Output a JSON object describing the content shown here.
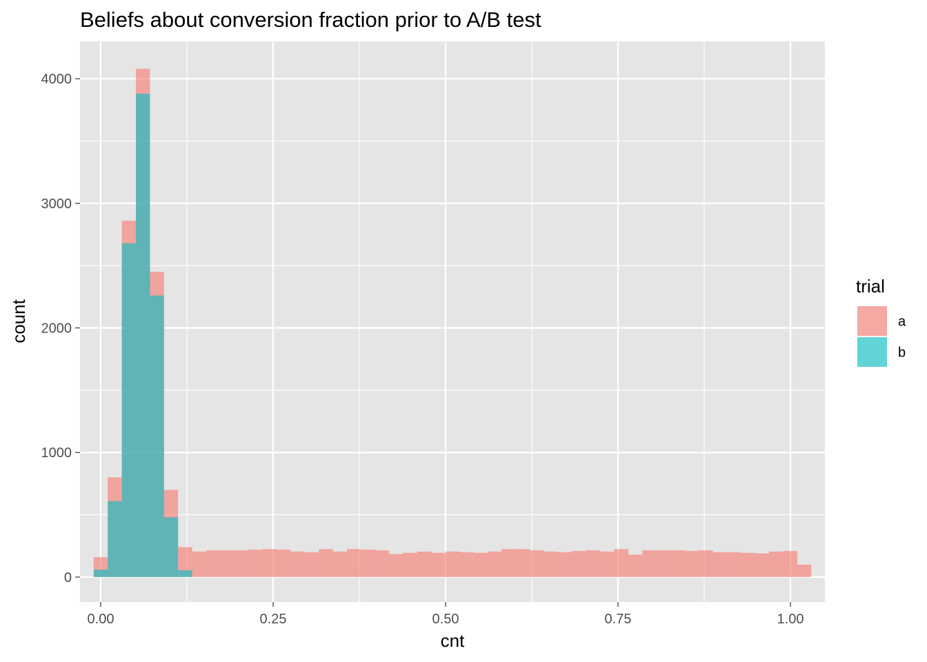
{
  "chart_data": {
    "type": "bar",
    "subtype": "histogram",
    "title": "Beliefs about conversion fraction prior to A/B test",
    "xlabel": "cnt",
    "ylabel": "count",
    "xlim": [
      -0.03,
      1.05
    ],
    "ylim": [
      -200,
      4300
    ],
    "x_ticks": [
      {
        "value": 0.0,
        "label": "0.00"
      },
      {
        "value": 0.25,
        "label": "0.25"
      },
      {
        "value": 0.5,
        "label": "0.50"
      },
      {
        "value": 0.75,
        "label": "0.75"
      },
      {
        "value": 1.0,
        "label": "1.00"
      }
    ],
    "y_ticks": [
      {
        "value": 0,
        "label": "0"
      },
      {
        "value": 1000,
        "label": "1000"
      },
      {
        "value": 2000,
        "label": "2000"
      },
      {
        "value": 3000,
        "label": "3000"
      },
      {
        "value": 4000,
        "label": "4000"
      }
    ],
    "grid": true,
    "bin_width": 0.0204,
    "bin_start": -0.0102,
    "series": [
      {
        "name": "a",
        "color": "#F8766D",
        "values": [
          160,
          800,
          2860,
          4080,
          2450,
          700,
          240,
          205,
          215,
          215,
          215,
          220,
          225,
          220,
          205,
          200,
          225,
          205,
          225,
          220,
          215,
          185,
          195,
          205,
          195,
          205,
          200,
          195,
          205,
          225,
          225,
          215,
          205,
          200,
          210,
          215,
          205,
          225,
          180,
          215,
          215,
          215,
          210,
          215,
          200,
          200,
          195,
          190,
          205,
          210,
          100
        ]
      },
      {
        "name": "b",
        "color": "#00BFC4",
        "values": [
          60,
          610,
          2680,
          3880,
          2260,
          480,
          55,
          0,
          0,
          0,
          0,
          0,
          0,
          0,
          0,
          0,
          0,
          0,
          0,
          0,
          0,
          0,
          0,
          0,
          0,
          0,
          0,
          0,
          0,
          0,
          0,
          0,
          0,
          0,
          0,
          0,
          0,
          0,
          0,
          0,
          0,
          0,
          0,
          0,
          0,
          0,
          0,
          0,
          0,
          0,
          0
        ]
      }
    ],
    "legend": {
      "title": "trial",
      "position": "right",
      "entries": [
        {
          "label": "a",
          "color": "#F8766D"
        },
        {
          "label": "b",
          "color": "#00BFC4"
        }
      ]
    },
    "fill_opacity": 0.6,
    "panel_color": "#E5E5E5",
    "grid_color": "#FFFFFF"
  }
}
